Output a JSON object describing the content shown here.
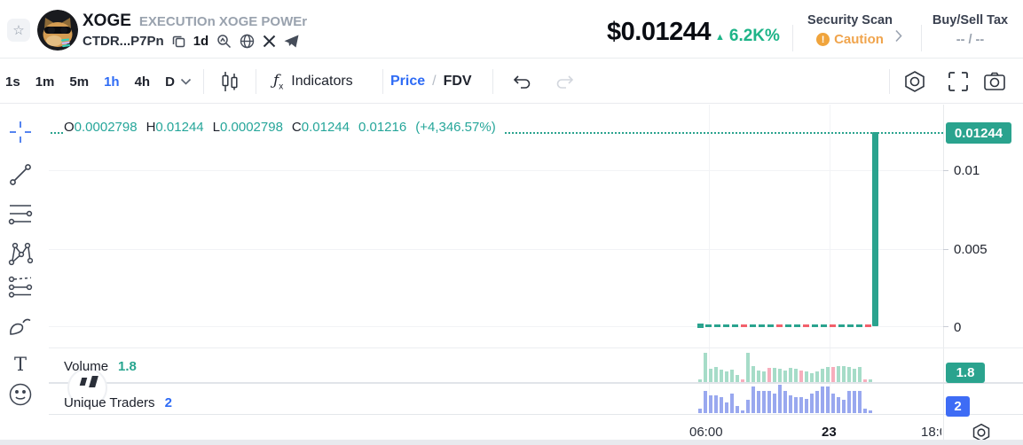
{
  "header": {
    "symbol": "XOGE",
    "name": "EXECUTIOn XOGE POWEr",
    "contract": "CTDR...P7Pn",
    "age": "1d",
    "price": "$0.01244",
    "change_pct": "6.2K%",
    "security_label": "Security Scan",
    "security_status": "Caution",
    "tax_label": "Buy/Sell Tax",
    "tax_value": "-- / --"
  },
  "toolbar": {
    "timeframes": [
      "1s",
      "1m",
      "5m",
      "1h",
      "4h",
      "D"
    ],
    "active_timeframe": "1h",
    "indicators_label": "Indicators",
    "price_label": "Price",
    "slash": "/",
    "fdv_label": "FDV"
  },
  "icons": {
    "favorite": "☆",
    "up_triangle": "▲",
    "exclamation": "!",
    "text_tool": "T"
  },
  "panels": {
    "volume_label": "Volume",
    "volume_value": "1.8",
    "volume_badge": "1.8",
    "traders_label": "Unique Traders",
    "traders_value": "2",
    "traders_badge": "2"
  },
  "chart_data": {
    "type": "candlestick",
    "timeframe": "1h",
    "legend": {
      "o_key": "O",
      "o": "0.0002798",
      "h_key": "H",
      "h": "0.01244",
      "l_key": "L",
      "l": "0.0002798",
      "c_key": "C",
      "c": "0.01244",
      "prev_close": "0.01216",
      "change": "(+4,346.57%)"
    },
    "current_price_badge": "0.01244",
    "y_ticks": [
      "0.01",
      "0.005",
      "0"
    ],
    "y_range": [
      0,
      0.013
    ],
    "x_ticks": [
      "06:00",
      "23",
      "18:0"
    ],
    "big_candle": {
      "open": 0.0002798,
      "close": 0.01244,
      "direction": "up"
    },
    "flat_dashes": [
      "g",
      "g",
      "g",
      "g",
      "r",
      "g",
      "g",
      "g",
      "r",
      "g",
      "g",
      "r",
      "g",
      "g",
      "r",
      "g",
      "g",
      "g",
      "r"
    ],
    "volume": {
      "heights": [
        3,
        33,
        15,
        17,
        14,
        12,
        14,
        8,
        3,
        33,
        18,
        13,
        12,
        16,
        16,
        15,
        13,
        16,
        15,
        13,
        12,
        10,
        12,
        15,
        17,
        17,
        18,
        18,
        17,
        15,
        17,
        3,
        3
      ],
      "colors": [
        "g",
        "g",
        "g",
        "g",
        "g",
        "g",
        "g",
        "g",
        "p",
        "g",
        "g",
        "g",
        "g",
        "p",
        "g",
        "g",
        "g",
        "g",
        "g",
        "p",
        "g",
        "g",
        "g",
        "g",
        "g",
        "p",
        "g",
        "g",
        "g",
        "g",
        "g",
        "p",
        "g"
      ]
    },
    "traders": {
      "heights": [
        5,
        25,
        20,
        20,
        18,
        12,
        22,
        8,
        3,
        15,
        30,
        25,
        25,
        25,
        22,
        32,
        25,
        20,
        18,
        18,
        16,
        22,
        25,
        30,
        30,
        22,
        18,
        15,
        25,
        25,
        25,
        5,
        3
      ]
    }
  },
  "colors": {
    "accent_teal": "#2aa38e",
    "legend_teal": "#26a69a",
    "change_green": "#1eb488",
    "accent_blue": "#2e6bf5",
    "badge_blue": "#3e6cf5",
    "caution_orange": "#f0a44c",
    "volume_green": "#a6dcc8",
    "volume_pink": "#f7adbc",
    "traders_blue": "#99a8ef",
    "dash_red": "#f2606b"
  }
}
